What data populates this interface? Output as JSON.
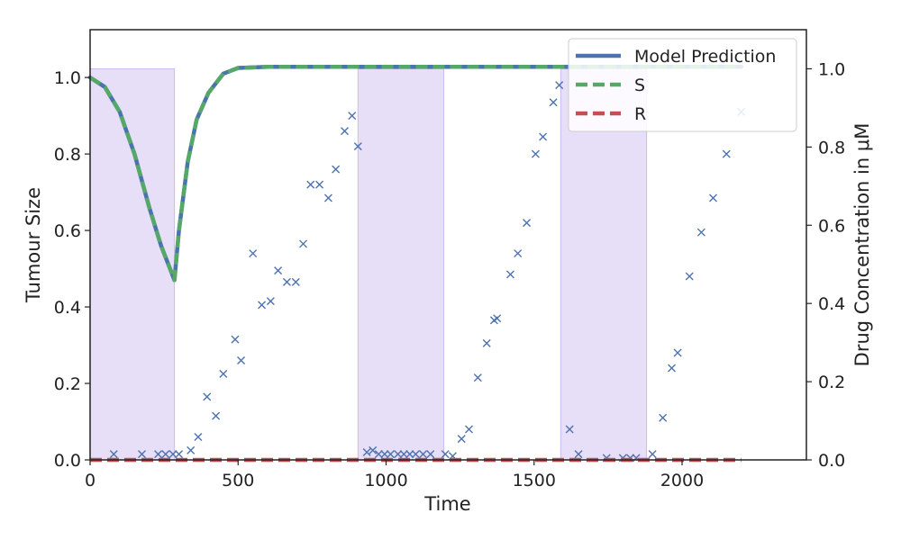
{
  "chart_data": {
    "type": "line",
    "title": "",
    "xlabel": "Time",
    "ylabel": "Tumour Size",
    "ylabel_right": "Drug Concentration in μM",
    "xlim": [
      0,
      2420
    ],
    "ylim": [
      0,
      1.125
    ],
    "ylim_right": [
      0,
      1.1
    ],
    "x_ticks": [
      0,
      500,
      1000,
      1500,
      2000
    ],
    "y_ticks": [
      0.0,
      0.2,
      0.4,
      0.6,
      0.8,
      1.0
    ],
    "y_ticks_right": [
      0.0,
      0.2,
      0.4,
      0.6,
      0.8,
      1.0
    ],
    "grid": false,
    "legend_position": "top-right",
    "legend": [
      "Model Prediction",
      "S",
      "R"
    ],
    "colors": {
      "model": "#4c72b0",
      "S": "#55a868",
      "R": "#c44e52",
      "observed": "#4c72b0",
      "treatment": "#b9a5ea"
    },
    "treatment_windows": [
      {
        "start": 0,
        "end": 285,
        "level": 1.0
      },
      {
        "start": 905,
        "end": 1195,
        "level": 1.0
      },
      {
        "start": 1590,
        "end": 1880,
        "level": 1.0
      }
    ],
    "series": [
      {
        "name": "Model Prediction",
        "style": "solid",
        "x": [
          0,
          50,
          100,
          150,
          200,
          240,
          270,
          285,
          300,
          330,
          360,
          400,
          450,
          500,
          600,
          800,
          1000,
          1500,
          2000,
          2200
        ],
        "y": [
          1.0,
          0.975,
          0.91,
          0.8,
          0.66,
          0.56,
          0.5,
          0.47,
          0.6,
          0.78,
          0.89,
          0.96,
          1.01,
          1.025,
          1.028,
          1.028,
          1.028,
          1.028,
          1.028,
          1.028
        ]
      },
      {
        "name": "S",
        "style": "dashed",
        "x": [
          0,
          50,
          100,
          150,
          200,
          240,
          270,
          285,
          300,
          330,
          360,
          400,
          450,
          500,
          600,
          800,
          1000,
          1500,
          2000,
          2200
        ],
        "y": [
          1.0,
          0.975,
          0.91,
          0.8,
          0.66,
          0.56,
          0.5,
          0.47,
          0.6,
          0.78,
          0.89,
          0.96,
          1.01,
          1.025,
          1.028,
          1.028,
          1.028,
          1.028,
          1.028,
          1.028
        ]
      },
      {
        "name": "R",
        "style": "dashed",
        "x": [
          0,
          2200
        ],
        "y": [
          0.0,
          0.0
        ]
      }
    ],
    "observed": {
      "marker": "x",
      "x": [
        80,
        175,
        230,
        255,
        280,
        300,
        340,
        365,
        395,
        425,
        450,
        490,
        510,
        550,
        580,
        610,
        635,
        665,
        695,
        720,
        745,
        775,
        805,
        830,
        860,
        885,
        905,
        935,
        955,
        975,
        995,
        1015,
        1040,
        1060,
        1080,
        1100,
        1125,
        1150,
        1200,
        1225,
        1255,
        1280,
        1310,
        1340,
        1365,
        1375,
        1420,
        1445,
        1475,
        1505,
        1530,
        1565,
        1585,
        1620,
        1650,
        1745,
        1800,
        1825,
        1845,
        1900,
        1935,
        1965,
        1985,
        2025,
        2065,
        2105,
        2150,
        2200
      ],
      "y": [
        0.015,
        0.015,
        0.015,
        0.015,
        0.015,
        0.015,
        0.025,
        0.06,
        0.165,
        0.115,
        0.225,
        0.315,
        0.26,
        0.54,
        0.405,
        0.415,
        0.495,
        0.465,
        0.465,
        0.565,
        0.72,
        0.72,
        0.685,
        0.76,
        0.86,
        0.9,
        0.82,
        0.02,
        0.025,
        0.015,
        0.015,
        0.015,
        0.015,
        0.015,
        0.015,
        0.015,
        0.015,
        0.015,
        0.015,
        0.01,
        0.055,
        0.08,
        0.215,
        0.305,
        0.365,
        0.37,
        0.485,
        0.54,
        0.62,
        0.8,
        0.845,
        0.935,
        0.98,
        0.08,
        0.015,
        0.005,
        0.005,
        0.005,
        0.005,
        0.015,
        0.11,
        0.24,
        0.28,
        0.48,
        0.595,
        0.685,
        0.8,
        0.91
      ]
    }
  }
}
